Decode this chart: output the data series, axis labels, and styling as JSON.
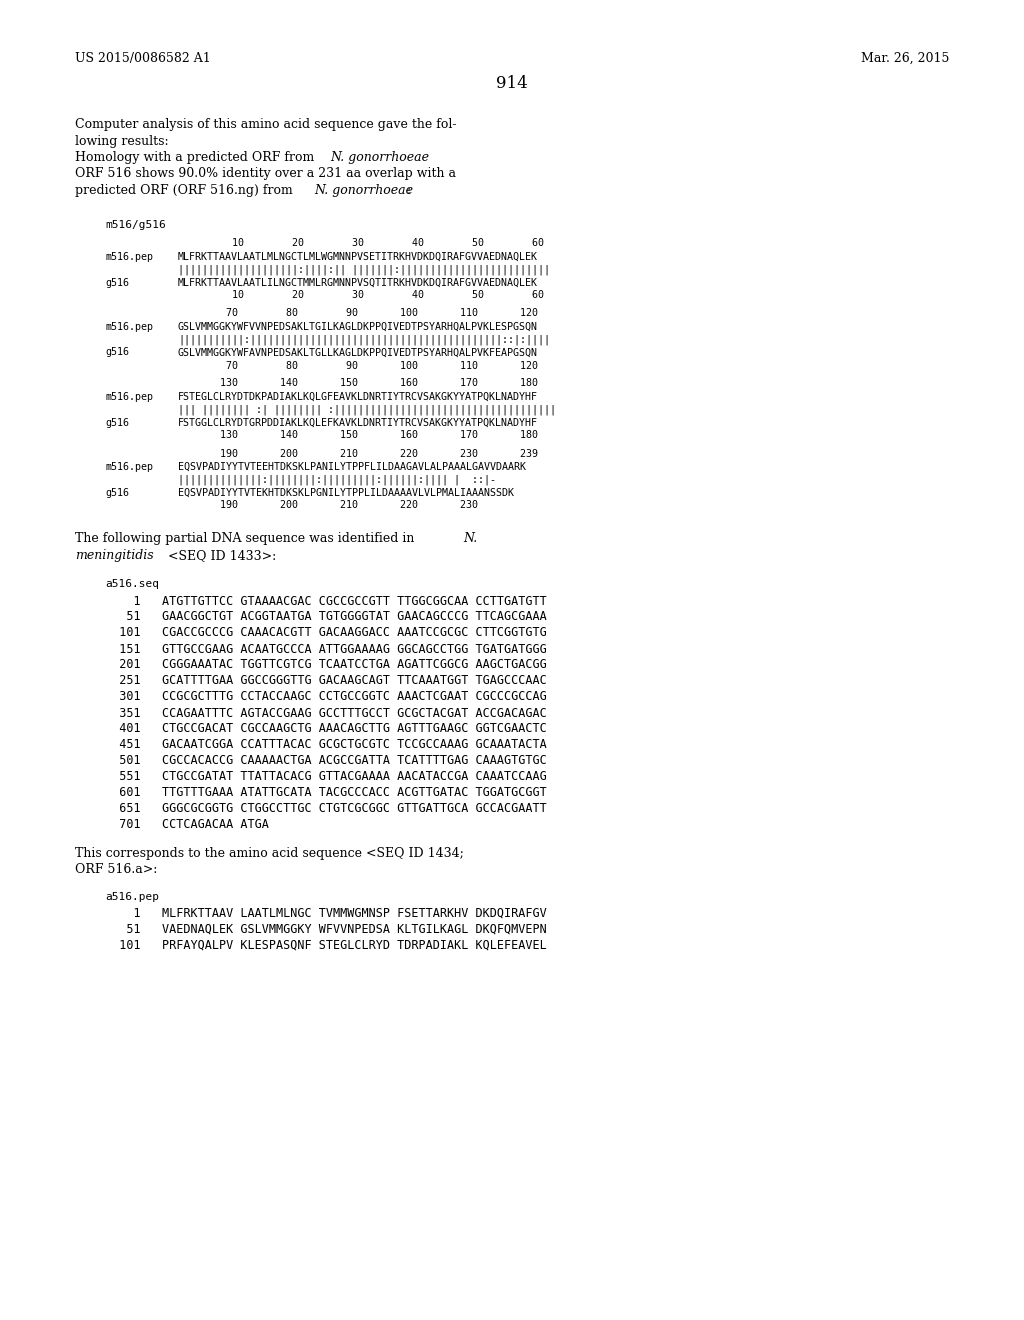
{
  "patent_number": "US 2015/0086582 A1",
  "date": "Mar. 26, 2015",
  "page_number": "914",
  "background_color": "#ffffff",
  "alignment_blocks": [
    {
      "nums_top": "         10        20        30        40        50        60",
      "seq1_label": "m516.pep",
      "seq1": "MLFRKTTAAVLAATLMLNGCTLMLWGMNNPVSETITRKHVDKDQIRAFGVVAEDNAQLEK",
      "match": "||||||||||||||||||||:||||:|| |||||||:|||||||||||||||||||||||||",
      "seq2_label": "g516",
      "seq2": "MLFRKTTAAVLAATLILNGCTMMLRGMNNPVSQTITRKHVDKDQIRAFGVVAEDNAQLEK",
      "nums_bot": "         10        20        30        40        50        60"
    },
    {
      "nums_top": "        70        80        90       100       110       120",
      "seq1_label": "m516.pep",
      "seq1": "GSLVMMGGKYWFVVNPEDSAKLTGILKAGLDKPPQIVEDTPSYARHQALPVKLESPGSQN",
      "match": "|||||||||||:||||||||||||||||||||||||||||||||||||||||||::|:||||",
      "seq2_label": "g516",
      "seq2": "GSLVMMGGKYWFAVNPEDSAKLTGLLKAGLDKPPQIVEDTPSYARHQALPVKFEAPGSQN",
      "nums_bot": "        70        80        90       100       110       120"
    },
    {
      "nums_top": "       130       140       150       160       170       180",
      "seq1_label": "m516.pep",
      "seq1": "FSTEGLCLRYDTDKPADIAKLKQLGFEAVKLDNRTIYTRCVSAKGKYYATPQKLNADYHF",
      "match": "||| |||||||| :| |||||||| :|||||||||||||||||||||||||||||||||||||",
      "seq2_label": "g516",
      "seq2": "FSTGGLCLRYDTGRPDDIAKLKQLEFKAVKLDNRTIYTRCVSAKGKYYATPQKLNADYHF",
      "nums_bot": "       130       140       150       160       170       180"
    },
    {
      "nums_top": "       190       200       210       220       230       239",
      "seq1_label": "m516.pep",
      "seq1": "EQSVPADIYYTVTEEHTDKSKLPANILYTPPFLILDAAGAVLALPAAALGAVVDAARK",
      "match": "||||||||||||||:||||||||:|||||||||:||||||:|||| |  ::|-",
      "seq2_label": "g516",
      "seq2": "EQSVPADIYYTVTEKHTDKSKLPGNILYTPPLILDAAAAVLVLPMALIAAANSSDK",
      "nums_bot": "       190       200       210       220       230"
    }
  ],
  "dna_sequences": [
    "    1   ATGTTGTTCC GTAAAACGAC CGCCGCCGTT TTGGCGGCAA CCTTGATGTT",
    "   51   GAACGGCTGT ACGGTAATGA TGTGGGGTAT GAACAGCCCG TTCAGCGAAA",
    "  101   CGACCGCCCG CAAACACGTT GACAAGGACC AAATCCGCGC CTTCGGTGTG",
    "  151   GTTGCCGAAG ACAATGCCCA ATTGGAAAAG GGCAGCCTGG TGATGATGGG",
    "  201   CGGGAAATAC TGGTTCGTCG TCAATCCTGA AGATTCGGCG AAGCTGACGG",
    "  251   GCATTTTGAA GGCCGGGTTG GACAAGCAGT TTCAAATGGT TGAGCCCAAC",
    "  301   CCGCGCTTTG CCTACCAAGC CCTGCCGGTC AAACTCGAAT CGCCCGCCAG",
    "  351   CCAGAATTTC AGTACCGAAG GCCTTTGCCT GCGCTACGAT ACCGACAGAC",
    "  401   CTGCCGACAT CGCCAAGCTG AAACAGCTTG AGTTTGAAGC GGTCGAACTC",
    "  451   GACAATCGGA CCATTTACAC GCGCTGCGTC TCCGCCAAAG GCAAATACTA",
    "  501   CGCCACACCG CAAAAACTGA ACGCCGATTA TCATTTTGAG CAAAGTGTGC",
    "  551   CTGCCGATAT TTATTACACG GTTACGAAAA AACATACCGA CAAATCCAAG",
    "  601   TTGTTTGAAA ATATTGCATA TACGCCCACC ACGTTGATAC TGGATGCGGT",
    "  651   GGGCGCGGTG CTGGCCTTGC CTGTCGCGGC GTTGATTGCA GCCACGAATT",
    "  701   CCTCAGACAA ATGA"
  ],
  "amino_sequences": [
    "    1   MLFRKTTAAV LAATLMLNGC TVMMWGMNSP FSETTARKHV DKDQIRAFGV",
    "   51   VAEDNAQLEK GSLVMMGGKY WFVVNPEDSA KLTGILKAGL DKQFQMVEPN",
    "  101   PRFAYQALPV KLESPASQNF STEGLCLRYD TDRPADIAKL KQLEFEAVEL"
  ]
}
